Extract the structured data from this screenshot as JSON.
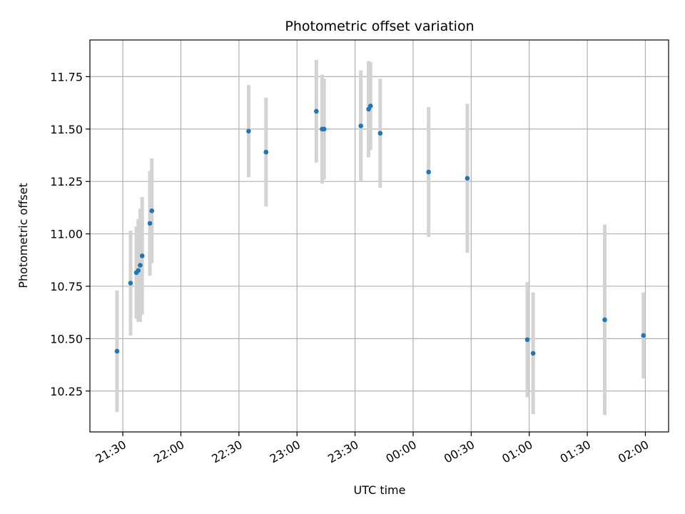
{
  "chart_data": {
    "type": "scatter",
    "title": "Photometric offset variation",
    "xlabel": "UTC time",
    "ylabel": "Photometric offset",
    "grid": true,
    "x_tick_labels": [
      "21:30",
      "22:00",
      "22:30",
      "23:00",
      "23:30",
      "00:00",
      "00:30",
      "01:00",
      "01:30",
      "02:00"
    ],
    "xlim": [
      "21:13",
      "02:12"
    ],
    "ylim": [
      10.055,
      11.925
    ],
    "y_ticks": [
      10.25,
      10.5,
      10.75,
      11.0,
      11.25,
      11.5,
      11.75
    ],
    "y_tick_labels": [
      "10.25",
      "10.50",
      "10.75",
      "11.00",
      "11.25",
      "11.50",
      "11.75"
    ],
    "errorbar_color": "#d3d3d3",
    "point_color": "#1f77b4",
    "points": [
      {
        "x": "21:27",
        "y": 10.44,
        "err": 0.29
      },
      {
        "x": "21:34",
        "y": 10.765,
        "err": 0.25
      },
      {
        "x": "21:37",
        "y": 10.815,
        "err": 0.22
      },
      {
        "x": "21:38",
        "y": 10.825,
        "err": 0.245
      },
      {
        "x": "21:39",
        "y": 10.85,
        "err": 0.27
      },
      {
        "x": "21:40",
        "y": 10.895,
        "err": 0.28
      },
      {
        "x": "21:44",
        "y": 11.05,
        "err": 0.25
      },
      {
        "x": "21:45",
        "y": 11.11,
        "err": 0.25
      },
      {
        "x": "22:35",
        "y": 11.49,
        "err": 0.22
      },
      {
        "x": "22:44",
        "y": 11.39,
        "err": 0.26
      },
      {
        "x": "23:10",
        "y": 11.585,
        "err": 0.245
      },
      {
        "x": "23:13",
        "y": 11.5,
        "err": 0.26
      },
      {
        "x": "23:14",
        "y": 11.5,
        "err": 0.24
      },
      {
        "x": "23:33",
        "y": 11.515,
        "err": 0.265
      },
      {
        "x": "23:37",
        "y": 11.595,
        "err": 0.23
      },
      {
        "x": "23:38",
        "y": 11.61,
        "err": 0.21
      },
      {
        "x": "23:43",
        "y": 11.48,
        "err": 0.26
      },
      {
        "x": "00:08",
        "y": 11.295,
        "err": 0.31
      },
      {
        "x": "00:28",
        "y": 11.265,
        "err": 0.355
      },
      {
        "x": "00:59",
        "y": 10.495,
        "err": 0.275
      },
      {
        "x": "01:02",
        "y": 10.43,
        "err": 0.29
      },
      {
        "x": "01:39",
        "y": 10.59,
        "err": 0.455
      },
      {
        "x": "01:59",
        "y": 10.515,
        "err": 0.205
      }
    ]
  }
}
